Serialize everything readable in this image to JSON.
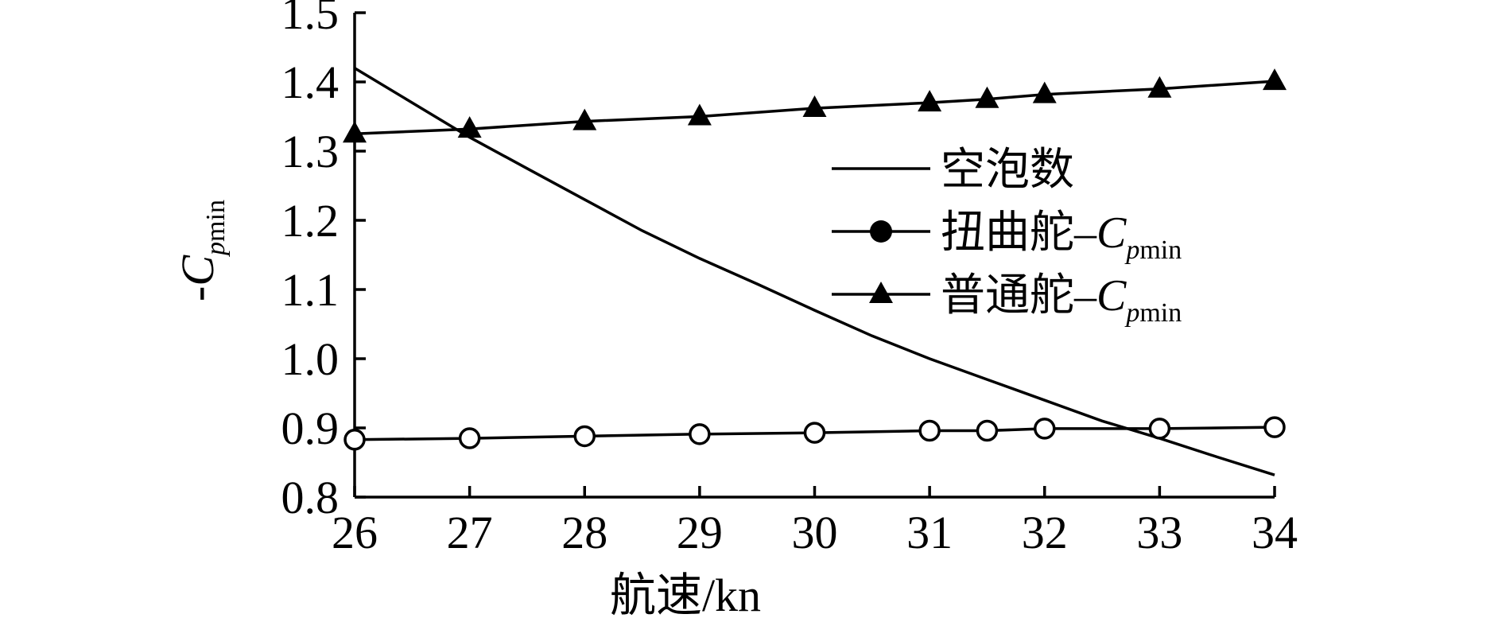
{
  "chart_data": {
    "type": "line",
    "xlabel": "航速/kn",
    "ylabel": {
      "prefix": "-",
      "main": "C",
      "sub_italic": "p",
      "sub_rest": "min"
    },
    "xlim": [
      26,
      34
    ],
    "ylim": [
      0.8,
      1.5
    ],
    "x_ticks": [
      "26",
      "27",
      "28",
      "29",
      "30",
      "31",
      "32",
      "33",
      "34"
    ],
    "y_ticks": [
      "0.8",
      "0.9",
      "1.0",
      "1.1",
      "1.2",
      "1.3",
      "1.4",
      "1.5"
    ],
    "grid": false,
    "legend_position": "right",
    "legend": [
      {
        "text": "空泡数",
        "suffix": "",
        "marker": "none"
      },
      {
        "text": "扭曲舵",
        "suffix": "Cpmin",
        "marker": "circle-filled"
      },
      {
        "text": "普通舵",
        "suffix": "Cpmin",
        "marker": "triangle"
      }
    ],
    "series": [
      {
        "marker": "none",
        "x": [
          26,
          26.5,
          27,
          27.5,
          28,
          28.5,
          29,
          29.5,
          30,
          30.5,
          31,
          31.5,
          32,
          32.5,
          33,
          33.5,
          34
        ],
        "y": [
          1.42,
          1.37,
          1.32,
          1.275,
          1.23,
          1.185,
          1.145,
          1.108,
          1.07,
          1.033,
          1.0,
          0.97,
          0.94,
          0.91,
          0.885,
          0.858,
          0.832
        ]
      },
      {
        "marker": "circle-open",
        "x": [
          26,
          27,
          28,
          29,
          30,
          31,
          31.5,
          32,
          33,
          34
        ],
        "y": [
          0.883,
          0.885,
          0.888,
          0.891,
          0.893,
          0.896,
          0.896,
          0.899,
          0.899,
          0.901
        ]
      },
      {
        "marker": "triangle",
        "x": [
          26,
          27,
          28,
          29,
          30,
          31,
          31.5,
          32,
          33,
          34
        ],
        "y": [
          1.325,
          1.332,
          1.343,
          1.35,
          1.362,
          1.37,
          1.375,
          1.382,
          1.39,
          1.401
        ]
      }
    ]
  }
}
